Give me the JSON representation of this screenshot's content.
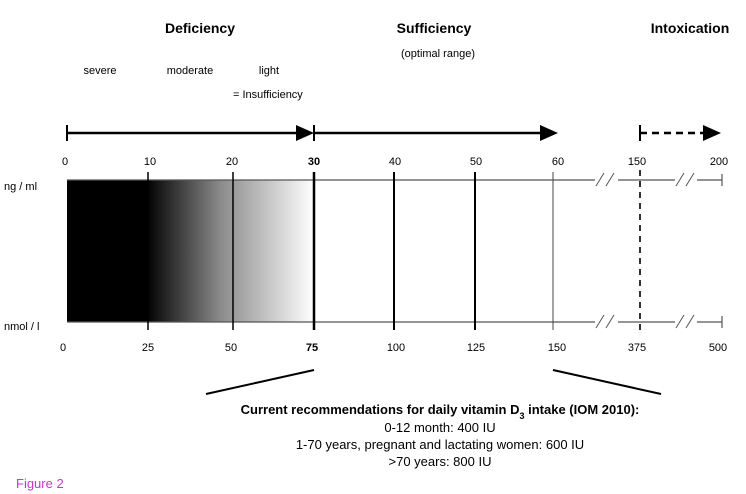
{
  "headings": {
    "deficiency": "Deficiency",
    "sufficiency": "Sufficiency",
    "optimal_range": "(optimal range)",
    "intoxication": "Intoxication"
  },
  "severity": {
    "severe": "severe",
    "moderate": "moderate",
    "light": "light",
    "insufficiency": "= Insufficiency"
  },
  "units": {
    "ng": "ng / ml",
    "nmol": "nmol / l"
  },
  "ng_ticks": [
    "0",
    "10",
    "20",
    "30",
    "40",
    "50",
    "60",
    "150",
    "200"
  ],
  "nmol_ticks": [
    "0",
    "25",
    "50",
    "75",
    "100",
    "125",
    "150",
    "375",
    "500"
  ],
  "recommendations": {
    "title_pre": "Current recommendations for daily vitamin D",
    "title_sub": "3",
    "title_post": " intake (IOM 2010):",
    "lines": [
      "0-12 month: 400 IU",
      "1-70 years, pregnant and lactating women: 600 IU",
      ">70 years: 800 IU"
    ]
  },
  "caption": "Figure 2"
}
